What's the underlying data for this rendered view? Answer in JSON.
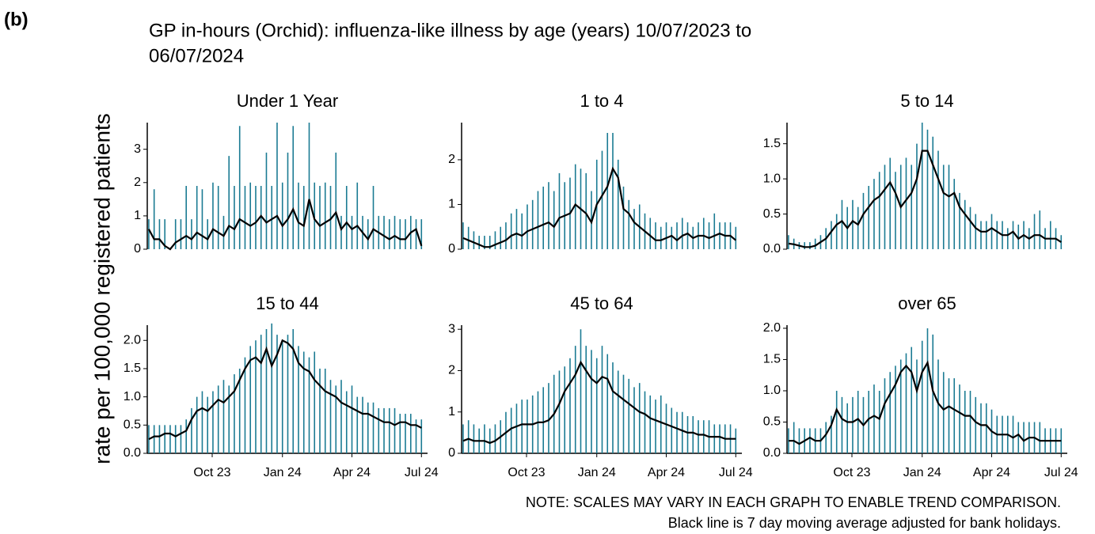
{
  "label": "(b)",
  "chart_data": {
    "type": "line",
    "title_lines": [
      "GP in-hours (Orchid): influenza-like illness by age (years) 10/07/2023 to",
      "06/07/2024"
    ],
    "y_label": "rate per 100,000 registered patients",
    "notes": [
      "NOTE: SCALES MAY VARY IN EACH GRAPH TO ENABLE TREND COMPARISON.",
      "Black line is 7 day moving average adjusted for bank holidays."
    ],
    "x": [
      0,
      7,
      14,
      21,
      28,
      35,
      42,
      49,
      56,
      63,
      70,
      77,
      84,
      91,
      98,
      105,
      112,
      119,
      126,
      133,
      140,
      147,
      154,
      161,
      168,
      175,
      182,
      189,
      196,
      203,
      210,
      217,
      224,
      231,
      238,
      245,
      252,
      259,
      266,
      273,
      280,
      287,
      294,
      301,
      308,
      315,
      322,
      329,
      336,
      343,
      350,
      357
    ],
    "xlim": [
      -2,
      365
    ],
    "xticks": [
      {
        "value": 83,
        "label": "Oct 23"
      },
      {
        "value": 175,
        "label": "Jan 24"
      },
      {
        "value": 266,
        "label": "Apr 24"
      },
      {
        "value": 357,
        "label": "Jul 24"
      }
    ],
    "panels": [
      {
        "title": "Under 1 Year",
        "ylim": [
          0,
          3.8
        ],
        "yticks": [
          0,
          1,
          2,
          3
        ],
        "series": [
          {
            "type": "needle",
            "color": "#1b7b93",
            "values": [
              0.9,
              1.8,
              0.9,
              0.9,
              0,
              0.9,
              0.9,
              1.9,
              0.9,
              1.9,
              1.8,
              0.9,
              2.0,
              1.9,
              1.0,
              2.8,
              1.9,
              3.7,
              1.9,
              2.0,
              1.9,
              1.9,
              2.9,
              1.9,
              3.8,
              2.0,
              2.9,
              3.7,
              2.0,
              1.9,
              3.8,
              2.0,
              1.9,
              2.0,
              1.9,
              2.9,
              1.0,
              1.9,
              1.0,
              2.0,
              1.0,
              0.9,
              1.9,
              1.0,
              1.0,
              0.9,
              1.0,
              0.9,
              0.9,
              1.0,
              0.9,
              0.9
            ]
          },
          {
            "type": "line",
            "color": "#000000",
            "values": [
              0.6,
              0.3,
              0.3,
              0.1,
              0,
              0.2,
              0.3,
              0.4,
              0.3,
              0.5,
              0.4,
              0.3,
              0.6,
              0.5,
              0.4,
              0.7,
              0.6,
              0.9,
              0.8,
              0.7,
              0.8,
              1.0,
              0.8,
              0.9,
              1.0,
              0.7,
              0.9,
              1.2,
              0.8,
              0.7,
              1.5,
              0.9,
              0.7,
              0.8,
              0.9,
              1.1,
              0.6,
              0.8,
              0.6,
              0.7,
              0.5,
              0.3,
              0.6,
              0.5,
              0.4,
              0.3,
              0.4,
              0.3,
              0.3,
              0.5,
              0.6,
              0.1
            ]
          }
        ]
      },
      {
        "title": "1 to 4",
        "ylim": [
          0,
          2.83
        ],
        "yticks": [
          0,
          1,
          2
        ],
        "series": [
          {
            "type": "needle",
            "color": "#1b7b93",
            "values": [
              0.6,
              0.5,
              0.4,
              0.3,
              0.3,
              0.3,
              0.4,
              0.5,
              0.6,
              0.8,
              0.9,
              0.8,
              1.0,
              1.1,
              1.3,
              1.4,
              1.5,
              1.3,
              1.7,
              1.5,
              1.6,
              1.9,
              1.8,
              1.7,
              1.3,
              2.0,
              2.2,
              2.6,
              2.6,
              2.0,
              1.4,
              1.1,
              0.9,
              1.0,
              0.8,
              0.7,
              0.6,
              0.5,
              0.6,
              0.5,
              0.6,
              0.7,
              0.6,
              0.5,
              0.6,
              0.7,
              0.6,
              0.8,
              0.6,
              0.6,
              0.6,
              0.5
            ]
          },
          {
            "type": "line",
            "color": "#000000",
            "values": [
              0.25,
              0.2,
              0.15,
              0.1,
              0.05,
              0.05,
              0.1,
              0.15,
              0.2,
              0.3,
              0.35,
              0.3,
              0.4,
              0.45,
              0.5,
              0.55,
              0.6,
              0.5,
              0.7,
              0.75,
              0.8,
              1.0,
              0.9,
              0.8,
              0.6,
              1.0,
              1.2,
              1.4,
              1.8,
              1.6,
              0.9,
              0.8,
              0.6,
              0.5,
              0.4,
              0.3,
              0.2,
              0.2,
              0.25,
              0.3,
              0.2,
              0.3,
              0.35,
              0.25,
              0.3,
              0.3,
              0.25,
              0.3,
              0.35,
              0.3,
              0.3,
              0.2
            ]
          }
        ]
      },
      {
        "title": "5 to 14",
        "ylim": [
          0,
          1.8
        ],
        "yticks": [
          {
            "value": 0,
            "label": "0.0"
          },
          {
            "value": 0.5,
            "label": "0.5"
          },
          {
            "value": 1,
            "label": "1.0"
          },
          {
            "value": 1.5,
            "label": "1.5"
          }
        ],
        "series": [
          {
            "type": "needle",
            "color": "#1b7b93",
            "values": [
              0.2,
              0.15,
              0.1,
              0.1,
              0.1,
              0.15,
              0.2,
              0.3,
              0.4,
              0.5,
              0.7,
              0.6,
              0.7,
              0.6,
              0.8,
              0.9,
              1.0,
              1.1,
              1.2,
              1.3,
              1.1,
              1.2,
              1.3,
              1.2,
              1.5,
              1.8,
              1.7,
              1.6,
              1.4,
              1.2,
              1.2,
              1.0,
              0.8,
              0.7,
              0.6,
              0.5,
              0.4,
              0.4,
              0.5,
              0.4,
              0.4,
              0.3,
              0.4,
              0.35,
              0.4,
              0.3,
              0.5,
              0.55,
              0.3,
              0.4,
              0.3,
              0.2
            ]
          },
          {
            "type": "line",
            "color": "#000000",
            "values": [
              0.08,
              0.07,
              0.05,
              0.03,
              0.03,
              0.05,
              0.1,
              0.15,
              0.25,
              0.35,
              0.4,
              0.3,
              0.4,
              0.35,
              0.5,
              0.6,
              0.7,
              0.75,
              0.85,
              0.95,
              0.8,
              0.6,
              0.7,
              0.8,
              1.0,
              1.4,
              1.4,
              1.2,
              1.0,
              0.8,
              0.75,
              0.8,
              0.6,
              0.5,
              0.4,
              0.3,
              0.25,
              0.25,
              0.3,
              0.25,
              0.2,
              0.2,
              0.25,
              0.15,
              0.2,
              0.15,
              0.2,
              0.2,
              0.15,
              0.15,
              0.15,
              0.1
            ]
          }
        ]
      },
      {
        "title": "15 to 44",
        "ylim": [
          0,
          2.27
        ],
        "yticks": [
          {
            "value": 0,
            "label": "0.0"
          },
          {
            "value": 0.5,
            "label": "0.5"
          },
          {
            "value": 1,
            "label": "1.0"
          },
          {
            "value": 1.5,
            "label": "1.5"
          },
          {
            "value": 2,
            "label": "2.0"
          }
        ],
        "series": [
          {
            "type": "needle",
            "color": "#1b7b93",
            "values": [
              0.5,
              0.5,
              0.5,
              0.5,
              0.5,
              0.5,
              0.5,
              0.6,
              0.8,
              1.0,
              1.1,
              1.0,
              1.1,
              1.2,
              1.3,
              1.2,
              1.4,
              1.5,
              1.7,
              1.9,
              2.0,
              2.1,
              2.2,
              2.3,
              2.1,
              2.0,
              2.1,
              2.2,
              1.9,
              1.8,
              1.7,
              1.8,
              1.5,
              1.5,
              1.3,
              1.2,
              1.3,
              1.1,
              1.2,
              1.0,
              1.0,
              0.9,
              0.9,
              0.8,
              0.8,
              0.8,
              0.8,
              0.7,
              0.7,
              0.7,
              0.6,
              0.6
            ]
          },
          {
            "type": "line",
            "color": "#000000",
            "values": [
              0.25,
              0.3,
              0.3,
              0.35,
              0.35,
              0.3,
              0.35,
              0.4,
              0.6,
              0.75,
              0.8,
              0.75,
              0.85,
              0.95,
              0.9,
              1.0,
              1.1,
              1.3,
              1.5,
              1.65,
              1.7,
              1.6,
              1.85,
              1.55,
              1.75,
              2.0,
              1.95,
              1.85,
              1.6,
              1.5,
              1.45,
              1.3,
              1.2,
              1.1,
              1.05,
              1.0,
              0.9,
              0.85,
              0.8,
              0.75,
              0.7,
              0.7,
              0.65,
              0.6,
              0.55,
              0.55,
              0.5,
              0.55,
              0.55,
              0.5,
              0.5,
              0.45
            ]
          }
        ]
      },
      {
        "title": "45 to 64",
        "ylim": [
          0,
          3.1
        ],
        "yticks": [
          0,
          1,
          2,
          3
        ],
        "series": [
          {
            "type": "needle",
            "color": "#1b7b93",
            "values": [
              0.7,
              0.8,
              0.7,
              0.6,
              0.7,
              0.6,
              0.7,
              0.8,
              1.0,
              1.1,
              1.2,
              1.3,
              1.3,
              1.4,
              1.5,
              1.6,
              1.7,
              1.9,
              2.0,
              2.1,
              2.3,
              2.6,
              3.0,
              2.6,
              2.5,
              2.3,
              2.6,
              2.4,
              2.2,
              2.0,
              1.9,
              1.8,
              1.6,
              1.7,
              1.5,
              1.4,
              1.3,
              1.4,
              1.2,
              1.1,
              1.0,
              1.0,
              0.9,
              0.9,
              0.8,
              0.8,
              0.8,
              0.7,
              0.7,
              0.7,
              0.7,
              0.6
            ]
          },
          {
            "type": "line",
            "color": "#000000",
            "values": [
              0.3,
              0.35,
              0.3,
              0.3,
              0.3,
              0.25,
              0.3,
              0.4,
              0.5,
              0.6,
              0.65,
              0.7,
              0.7,
              0.7,
              0.75,
              0.75,
              0.8,
              0.95,
              1.2,
              1.5,
              1.7,
              1.9,
              2.2,
              2.0,
              1.8,
              1.7,
              1.85,
              1.8,
              1.5,
              1.4,
              1.3,
              1.2,
              1.1,
              1.0,
              0.95,
              0.85,
              0.8,
              0.75,
              0.7,
              0.65,
              0.6,
              0.55,
              0.5,
              0.5,
              0.45,
              0.45,
              0.4,
              0.4,
              0.4,
              0.35,
              0.35,
              0.35
            ]
          }
        ]
      },
      {
        "title": "over 65",
        "ylim": [
          0,
          2.05
        ],
        "yticks": [
          {
            "value": 0,
            "label": "0.0"
          },
          {
            "value": 0.5,
            "label": "0.5"
          },
          {
            "value": 1,
            "label": "1.0"
          },
          {
            "value": 1.5,
            "label": "1.5"
          },
          {
            "value": 2,
            "label": "2.0"
          }
        ],
        "series": [
          {
            "type": "needle",
            "color": "#1b7b93",
            "values": [
              0.4,
              0.5,
              0.4,
              0.4,
              0.4,
              0.4,
              0.4,
              0.5,
              0.6,
              1.0,
              0.9,
              0.8,
              0.9,
              1.0,
              0.9,
              1.0,
              1.1,
              1.0,
              1.2,
              1.3,
              1.4,
              1.5,
              1.6,
              1.7,
              1.5,
              1.8,
              2.0,
              1.9,
              1.5,
              1.3,
              1.2,
              1.2,
              1.1,
              1.0,
              1.0,
              0.9,
              0.8,
              0.8,
              0.7,
              0.6,
              0.6,
              0.6,
              0.6,
              0.5,
              0.5,
              0.5,
              0.5,
              0.5,
              0.4,
              0.4,
              0.4,
              0.4
            ]
          },
          {
            "type": "line",
            "color": "#000000",
            "values": [
              0.2,
              0.2,
              0.15,
              0.2,
              0.25,
              0.2,
              0.2,
              0.3,
              0.45,
              0.7,
              0.55,
              0.5,
              0.5,
              0.55,
              0.45,
              0.55,
              0.6,
              0.55,
              0.8,
              0.95,
              1.1,
              1.3,
              1.4,
              1.3,
              1.0,
              1.3,
              1.45,
              1.0,
              0.8,
              0.7,
              0.75,
              0.7,
              0.65,
              0.6,
              0.6,
              0.5,
              0.45,
              0.45,
              0.35,
              0.3,
              0.3,
              0.3,
              0.25,
              0.3,
              0.2,
              0.25,
              0.25,
              0.2,
              0.2,
              0.2,
              0.2,
              0.2
            ]
          }
        ]
      }
    ]
  }
}
